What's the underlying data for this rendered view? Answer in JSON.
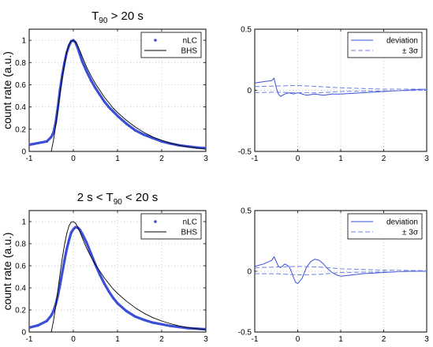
{
  "chart_data": [
    {
      "type": "line",
      "title": "T90 > 20 s",
      "title_parts": {
        "prefix": "T",
        "sub": "90",
        "suffix": " > 20 s"
      },
      "ylabel": "count rate (a.u.)",
      "xlim": [
        -1,
        3
      ],
      "ylim": [
        0,
        1.1
      ],
      "xticks": [
        -1,
        0,
        1,
        2,
        3
      ],
      "yticks": [
        0,
        0.2,
        0.4,
        0.6,
        0.8,
        1
      ],
      "xtick_labels": [
        "-1",
        "0",
        "1",
        "2",
        "3"
      ],
      "ytick_labels": [
        "0",
        "0.2",
        "0.4",
        "0.6",
        "0.8",
        "1"
      ],
      "grid": true,
      "legend_position": "top-right",
      "series": [
        {
          "name": "nLC",
          "style": "dots",
          "color": "#3a4fd6",
          "x": [
            -1.0,
            -0.8,
            -0.6,
            -0.5,
            -0.45,
            -0.4,
            -0.35,
            -0.3,
            -0.25,
            -0.2,
            -0.15,
            -0.1,
            -0.05,
            0.0,
            0.05,
            0.1,
            0.15,
            0.2,
            0.3,
            0.4,
            0.5,
            0.6,
            0.7,
            0.8,
            0.9,
            1.0,
            1.2,
            1.4,
            1.6,
            1.8,
            2.0,
            2.2,
            2.4,
            2.6,
            2.8,
            3.0
          ],
          "y": [
            0.06,
            0.075,
            0.09,
            0.13,
            0.17,
            0.26,
            0.4,
            0.56,
            0.69,
            0.8,
            0.89,
            0.95,
            0.99,
            1.0,
            0.98,
            0.93,
            0.87,
            0.81,
            0.72,
            0.64,
            0.57,
            0.51,
            0.45,
            0.4,
            0.36,
            0.32,
            0.25,
            0.19,
            0.15,
            0.12,
            0.09,
            0.07,
            0.055,
            0.045,
            0.035,
            0.03
          ]
        },
        {
          "name": "BHS",
          "style": "line",
          "color": "#000000",
          "x": [
            -0.5,
            -0.45,
            -0.4,
            -0.35,
            -0.3,
            -0.25,
            -0.2,
            -0.15,
            -0.1,
            -0.05,
            0.0,
            0.05,
            0.1,
            0.15,
            0.2,
            0.3,
            0.4,
            0.5,
            0.6,
            0.7,
            0.8,
            0.9,
            1.0,
            1.2,
            1.4,
            1.6,
            1.8,
            2.0,
            2.2,
            2.4,
            2.6,
            2.8,
            3.0
          ],
          "y": [
            0.0,
            0.1,
            0.23,
            0.38,
            0.53,
            0.67,
            0.79,
            0.89,
            0.96,
            0.995,
            1.0,
            0.985,
            0.95,
            0.905,
            0.855,
            0.76,
            0.68,
            0.61,
            0.55,
            0.49,
            0.44,
            0.39,
            0.35,
            0.28,
            0.22,
            0.17,
            0.13,
            0.1,
            0.075,
            0.055,
            0.04,
            0.03,
            0.02
          ]
        }
      ]
    },
    {
      "type": "line",
      "title": "",
      "xlim": [
        -1,
        3
      ],
      "ylim": [
        -0.5,
        0.5
      ],
      "xticks": [
        -1,
        0,
        1,
        2,
        3
      ],
      "yticks": [
        -0.5,
        0,
        0.5
      ],
      "xtick_labels": [
        "-1",
        "0",
        "1",
        "2",
        "3"
      ],
      "ytick_labels": [
        "-0.5",
        "0",
        "0.5"
      ],
      "grid": true,
      "legend_position": "top-right",
      "series": [
        {
          "name": "deviation",
          "style": "line",
          "color": "#3a4fd6",
          "x": [
            -1.0,
            -0.8,
            -0.6,
            -0.55,
            -0.5,
            -0.45,
            -0.4,
            -0.3,
            -0.2,
            -0.1,
            0.0,
            0.2,
            0.4,
            0.6,
            0.8,
            1.0,
            1.5,
            2.0,
            2.5,
            3.0
          ],
          "y": [
            0.06,
            0.07,
            0.08,
            0.1,
            0.02,
            -0.03,
            -0.05,
            -0.03,
            -0.02,
            -0.03,
            -0.02,
            -0.04,
            -0.03,
            -0.04,
            -0.03,
            -0.03,
            -0.02,
            -0.01,
            0.0,
            0.01
          ]
        },
        {
          "name": "± 3σ",
          "style": "dashed",
          "color": "#6f80e8",
          "upper": {
            "x": [
              -1,
              -0.5,
              0,
              0.5,
              1,
              2,
              3
            ],
            "y": [
              0.03,
              0.035,
              0.04,
              0.03,
              0.02,
              0.01,
              0.01
            ]
          },
          "lower": {
            "x": [
              -1,
              -0.5,
              0,
              0.5,
              1,
              2,
              3
            ],
            "y": [
              -0.02,
              -0.015,
              -0.02,
              -0.02,
              -0.01,
              -0.005,
              0.0
            ]
          }
        }
      ]
    },
    {
      "type": "line",
      "title": "2 s < T90 < 20 s",
      "title_parts": {
        "prefix": "2 s < T",
        "sub": "90",
        "suffix": " < 20 s"
      },
      "ylabel": "count rate (a.u.)",
      "xlim": [
        -1,
        3
      ],
      "ylim": [
        0,
        1.1
      ],
      "xticks": [
        -1,
        0,
        1,
        2,
        3
      ],
      "yticks": [
        0,
        0.2,
        0.4,
        0.6,
        0.8,
        1
      ],
      "xtick_labels": [
        "-1",
        "0",
        "1",
        "2",
        "3"
      ],
      "ytick_labels": [
        "0",
        "0.2",
        "0.4",
        "0.6",
        "0.8",
        "1"
      ],
      "grid": true,
      "legend_position": "top-right",
      "series": [
        {
          "name": "nLC",
          "style": "dots",
          "color": "#3a4fd6",
          "x": [
            -1.0,
            -0.8,
            -0.6,
            -0.5,
            -0.45,
            -0.4,
            -0.35,
            -0.3,
            -0.25,
            -0.2,
            -0.15,
            -0.1,
            -0.05,
            0.0,
            0.05,
            0.1,
            0.15,
            0.2,
            0.3,
            0.4,
            0.5,
            0.6,
            0.7,
            0.8,
            0.9,
            1.0,
            1.2,
            1.4,
            1.6,
            1.8,
            2.0,
            2.2,
            2.4,
            2.6,
            2.8,
            3.0
          ],
          "y": [
            0.04,
            0.06,
            0.1,
            0.15,
            0.19,
            0.25,
            0.33,
            0.43,
            0.54,
            0.65,
            0.75,
            0.83,
            0.9,
            0.93,
            0.95,
            0.945,
            0.925,
            0.89,
            0.81,
            0.71,
            0.61,
            0.52,
            0.44,
            0.37,
            0.31,
            0.26,
            0.19,
            0.14,
            0.11,
            0.085,
            0.07,
            0.055,
            0.045,
            0.035,
            0.03,
            0.025
          ]
        },
        {
          "name": "BHS",
          "style": "line",
          "color": "#000000",
          "x": [
            -0.5,
            -0.45,
            -0.4,
            -0.35,
            -0.3,
            -0.25,
            -0.2,
            -0.15,
            -0.1,
            -0.05,
            0.0,
            0.05,
            0.1,
            0.15,
            0.2,
            0.3,
            0.4,
            0.5,
            0.6,
            0.7,
            0.8,
            0.9,
            1.0,
            1.2,
            1.4,
            1.6,
            1.8,
            2.0,
            2.2,
            2.4,
            2.6,
            2.8,
            3.0
          ],
          "y": [
            0.0,
            0.1,
            0.23,
            0.38,
            0.53,
            0.67,
            0.79,
            0.89,
            0.96,
            0.995,
            1.0,
            0.985,
            0.95,
            0.905,
            0.855,
            0.76,
            0.68,
            0.61,
            0.55,
            0.49,
            0.44,
            0.39,
            0.35,
            0.28,
            0.22,
            0.17,
            0.13,
            0.1,
            0.075,
            0.055,
            0.04,
            0.03,
            0.02
          ]
        }
      ]
    },
    {
      "type": "line",
      "title": "",
      "xlim": [
        -1,
        3
      ],
      "ylim": [
        -0.5,
        0.5
      ],
      "xticks": [
        -1,
        0,
        1,
        2,
        3
      ],
      "yticks": [
        -0.5,
        0,
        0.5
      ],
      "xtick_labels": [
        "-1",
        "0",
        "1",
        "2",
        "3"
      ],
      "ytick_labels": [
        "-0.5",
        "0",
        "0.5"
      ],
      "grid": true,
      "legend_position": "top-right",
      "series": [
        {
          "name": "deviation",
          "style": "line",
          "color": "#3a4fd6",
          "x": [
            -1.0,
            -0.8,
            -0.6,
            -0.55,
            -0.5,
            -0.45,
            -0.4,
            -0.3,
            -0.2,
            -0.15,
            -0.1,
            -0.05,
            0.0,
            0.1,
            0.2,
            0.3,
            0.4,
            0.5,
            0.6,
            0.7,
            0.8,
            0.9,
            1.0,
            1.5,
            2.0,
            2.5,
            3.0
          ],
          "y": [
            0.04,
            0.06,
            0.09,
            0.12,
            0.08,
            0.04,
            0.03,
            0.06,
            0.04,
            0.0,
            -0.05,
            -0.09,
            -0.1,
            -0.06,
            0.03,
            0.08,
            0.1,
            0.09,
            0.06,
            0.02,
            -0.01,
            -0.03,
            -0.04,
            -0.02,
            -0.01,
            0.0,
            0.0
          ]
        },
        {
          "name": "± 3σ",
          "style": "dashed",
          "color": "#6f80e8",
          "upper": {
            "x": [
              -1,
              -0.5,
              0,
              0.5,
              1,
              2,
              3
            ],
            "y": [
              0.03,
              0.035,
              0.04,
              0.035,
              0.02,
              0.01,
              0.005
            ]
          },
          "lower": {
            "x": [
              -1,
              -0.5,
              0,
              0.5,
              1,
              2,
              3
            ],
            "y": [
              -0.02,
              -0.02,
              -0.03,
              -0.025,
              -0.01,
              -0.005,
              0.0
            ]
          }
        }
      ]
    }
  ]
}
